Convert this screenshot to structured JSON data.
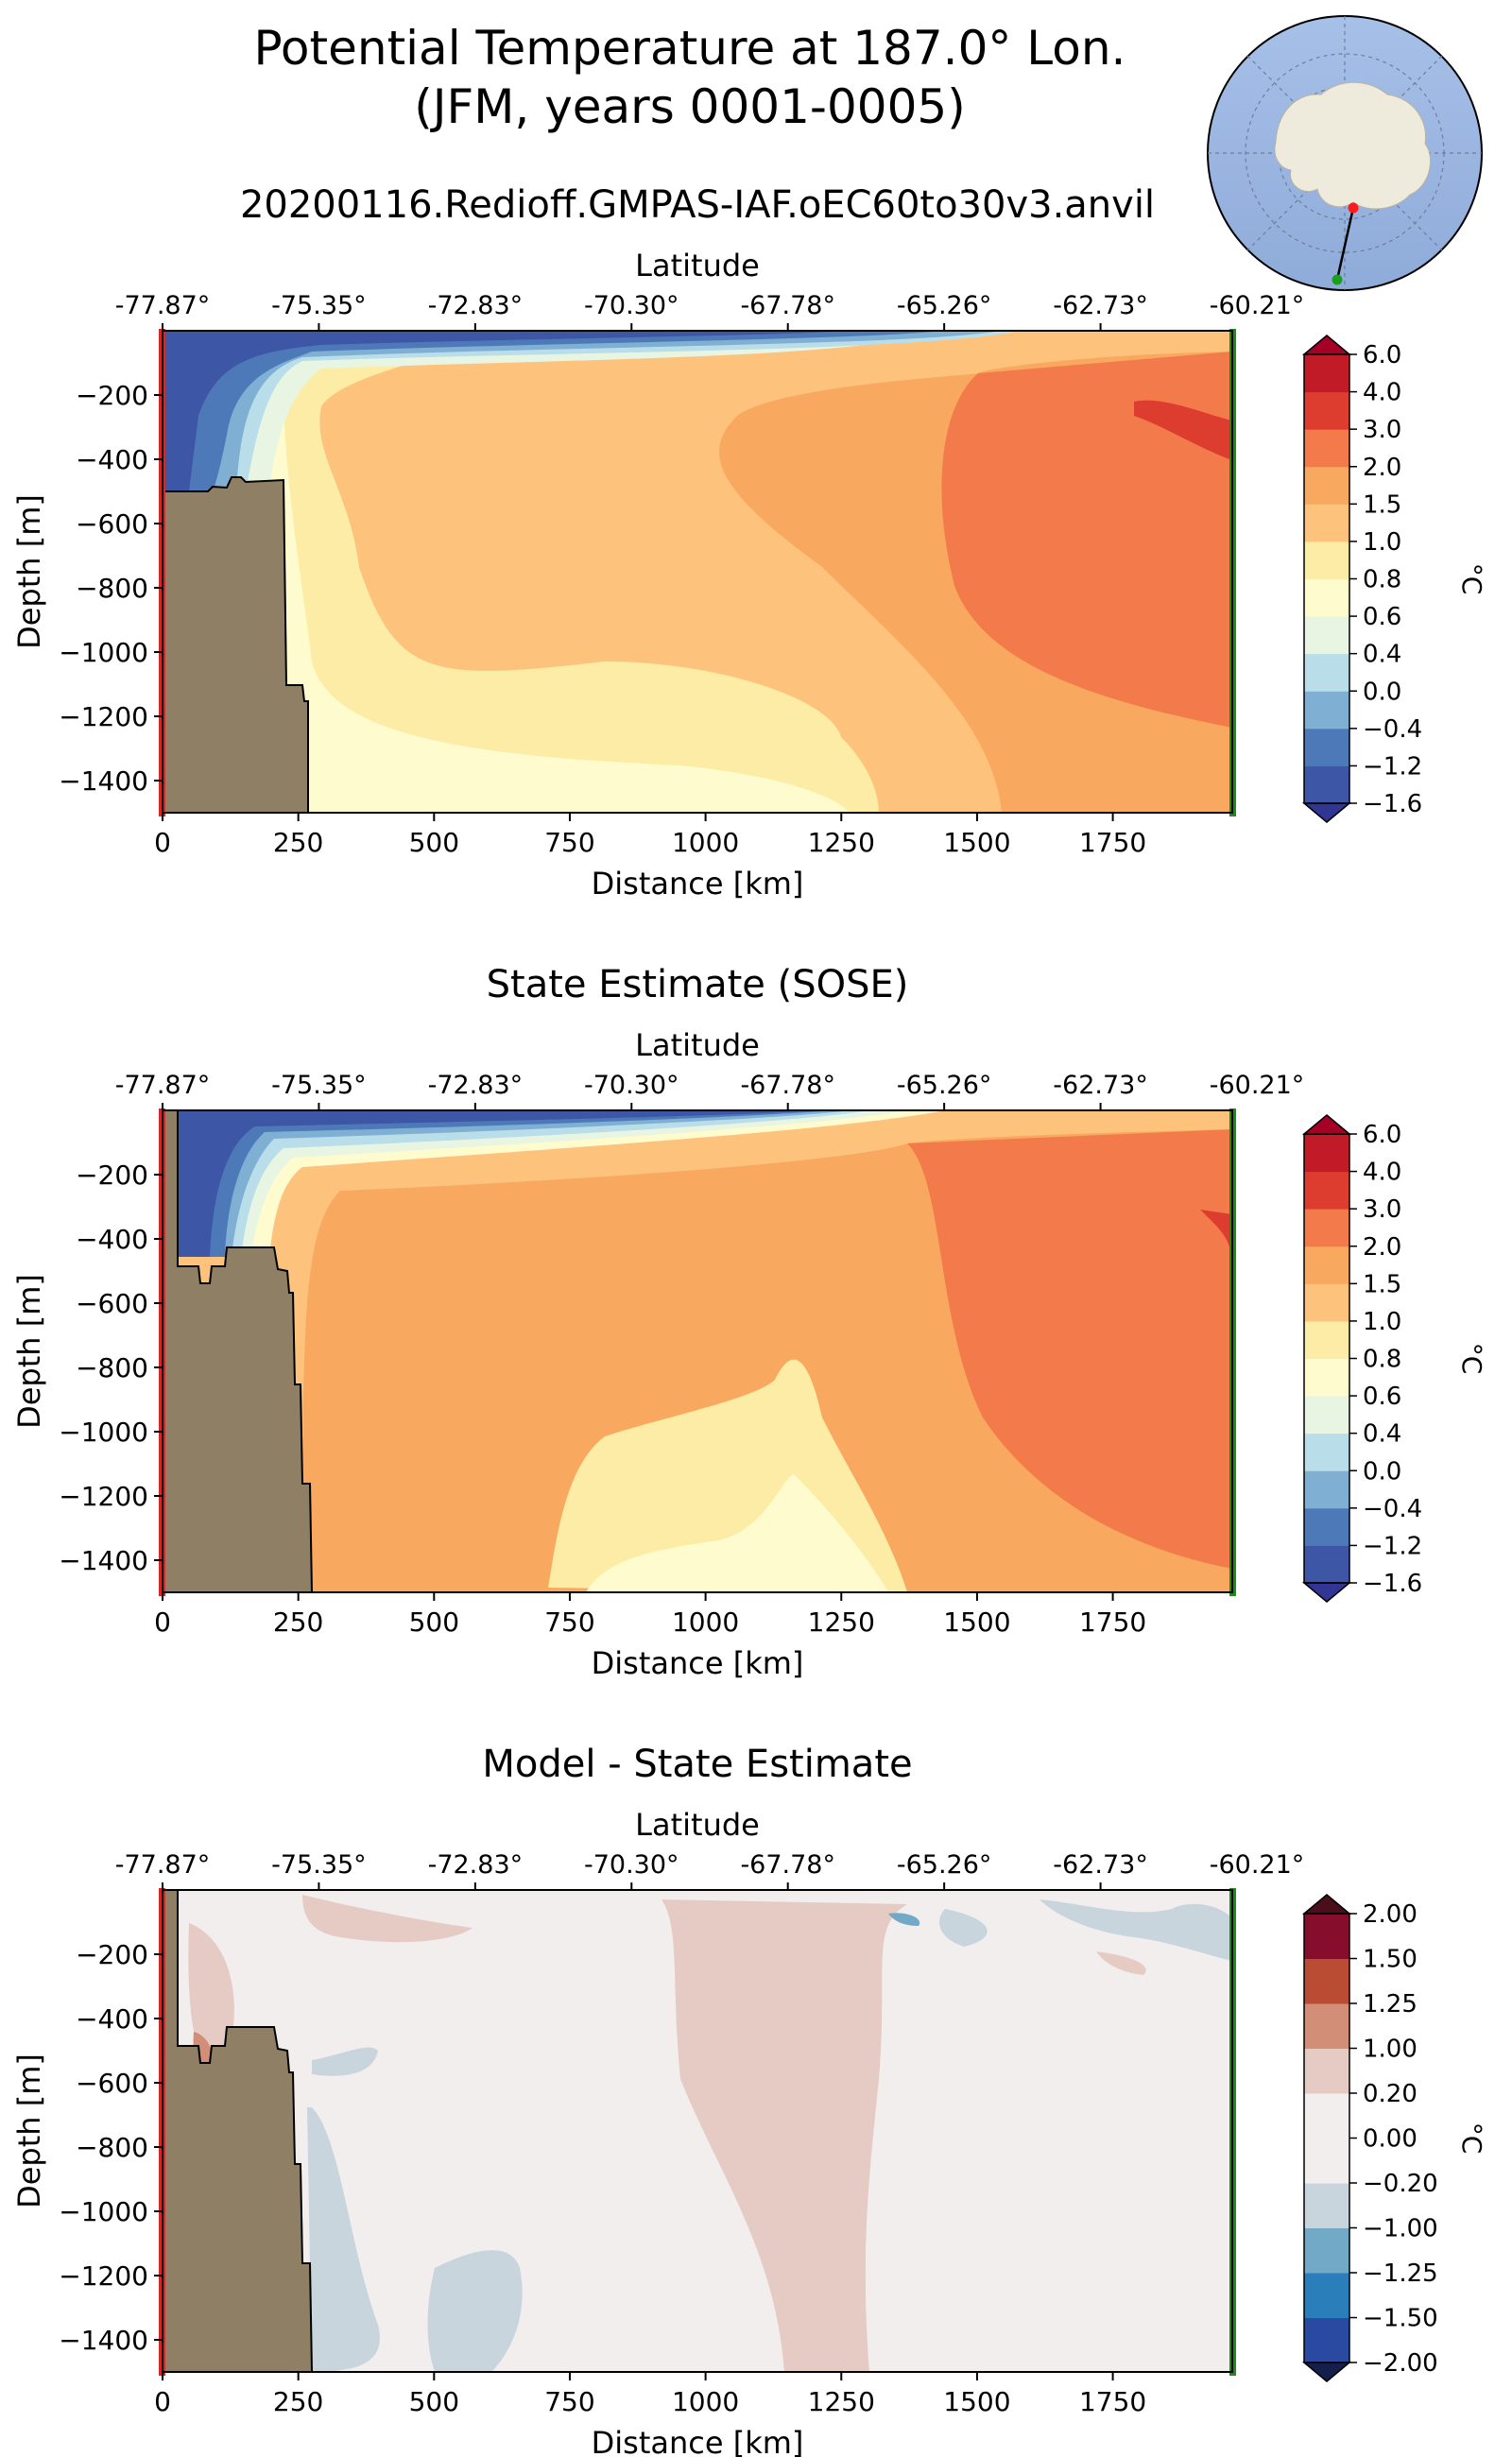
{
  "figure": {
    "title_line1": "Potential Temperature at 187.0° Lon.",
    "title_line2": "(JFM, years 0001-0005)",
    "run_name": "20200116.Redioff.GMPAS-IAF.oEC60to30v3.anvil"
  },
  "colors": {
    "land": "#8f7f65",
    "start_marker": "#d62728",
    "end_marker": "#1a8c1a",
    "ocean_map": "#9ab5e1",
    "antarctica": "#eeeadc"
  },
  "chart_data": [
    {
      "type": "heatmap",
      "title": "",
      "xlabel": "Distance [km]",
      "ylabel": "Depth [m]",
      "top_axis_label": "Latitude",
      "xlim": [
        0,
        1970
      ],
      "ylim": [
        -1500,
        0
      ],
      "x_ticks": [
        "0",
        "250",
        "500",
        "750",
        "1000",
        "1250",
        "1500",
        "1750"
      ],
      "y_ticks": [
        "−200",
        "−400",
        "−600",
        "−800",
        "−1000",
        "−1200",
        "−1400"
      ],
      "lat_ticks": [
        "-77.87°",
        "-75.35°",
        "-72.83°",
        "-70.30°",
        "-67.78°",
        "-65.26°",
        "-62.73°",
        "-60.21°"
      ],
      "colorbar_label": "°C",
      "colorbar_ticks": [
        "−1.6",
        "−1.2",
        "−0.4",
        "0.0",
        "0.4",
        "0.6",
        "0.8",
        "1.0",
        "1.5",
        "2.0",
        "3.0",
        "4.0",
        "6.0"
      ],
      "colorbar_colors": [
        "#3d57a6",
        "#4d79b9",
        "#7fafd3",
        "#b9dde9",
        "#e8f5e2",
        "#fefbcf",
        "#fdeca6",
        "#fdc37d",
        "#f9a95f",
        "#f37b4b",
        "#dd3d2f",
        "#c01b27"
      ],
      "colorbar_over": "#a50026",
      "colorbar_under": "#313695"
    },
    {
      "type": "heatmap",
      "title": "State Estimate (SOSE)",
      "xlabel": "Distance [km]",
      "ylabel": "Depth [m]",
      "top_axis_label": "Latitude",
      "xlim": [
        0,
        1970
      ],
      "ylim": [
        -1500,
        0
      ],
      "x_ticks": [
        "0",
        "250",
        "500",
        "750",
        "1000",
        "1250",
        "1500",
        "1750"
      ],
      "y_ticks": [
        "−200",
        "−400",
        "−600",
        "−800",
        "−1000",
        "−1200",
        "−1400"
      ],
      "lat_ticks": [
        "-77.87°",
        "-75.35°",
        "-72.83°",
        "-70.30°",
        "-67.78°",
        "-65.26°",
        "-62.73°",
        "-60.21°"
      ],
      "colorbar_label": "°C",
      "colorbar_ticks": [
        "−1.6",
        "−1.2",
        "−0.4",
        "0.0",
        "0.4",
        "0.6",
        "0.8",
        "1.0",
        "1.5",
        "2.0",
        "3.0",
        "4.0",
        "6.0"
      ],
      "colorbar_colors": [
        "#3d57a6",
        "#4d79b9",
        "#7fafd3",
        "#b9dde9",
        "#e8f5e2",
        "#fefbcf",
        "#fdeca6",
        "#fdc37d",
        "#f9a95f",
        "#f37b4b",
        "#dd3d2f",
        "#c01b27"
      ],
      "colorbar_over": "#a50026",
      "colorbar_under": "#313695"
    },
    {
      "type": "heatmap",
      "title": "Model - State Estimate",
      "xlabel": "Distance [km]",
      "ylabel": "Depth [m]",
      "top_axis_label": "Latitude",
      "xlim": [
        0,
        1970
      ],
      "ylim": [
        -1500,
        0
      ],
      "x_ticks": [
        "0",
        "250",
        "500",
        "750",
        "1000",
        "1250",
        "1500",
        "1750"
      ],
      "y_ticks": [
        "−200",
        "−400",
        "−600",
        "−800",
        "−1000",
        "−1200",
        "−1400"
      ],
      "lat_ticks": [
        "-77.87°",
        "-75.35°",
        "-72.83°",
        "-70.30°",
        "-67.78°",
        "-65.26°",
        "-62.73°",
        "-60.21°"
      ],
      "colorbar_label": "°C",
      "colorbar_ticks": [
        "−2.00",
        "−1.50",
        "−1.25",
        "−1.00",
        "−0.20",
        "0.00",
        "0.20",
        "1.00",
        "1.25",
        "1.50",
        "2.00"
      ],
      "colorbar_colors": [
        "#2a4aa1",
        "#2a7fbb",
        "#71a9c6",
        "#c8d5dd",
        "#f2eeee",
        "#f2eeee",
        "#e6cbc5",
        "#d28e76",
        "#bb4c34",
        "#870d2d"
      ],
      "colorbar_over": "#4a0f1a",
      "colorbar_under": "#141f4d"
    }
  ]
}
